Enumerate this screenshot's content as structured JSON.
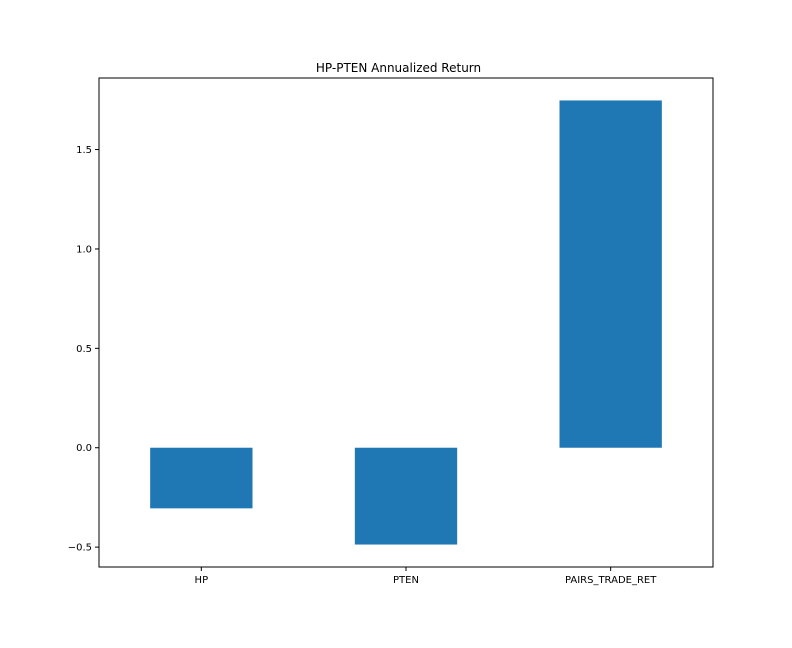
{
  "chart_data": {
    "type": "bar",
    "title": "HP-PTEN Annualized Return",
    "xlabel": "",
    "ylabel": "",
    "categories": [
      "HP",
      "PTEN",
      "PAIRS_TRADE_RET"
    ],
    "values": [
      -0.305,
      -0.487,
      1.747
    ],
    "ylim": [
      -0.6,
      1.86
    ],
    "yticks": [
      -0.5,
      0.0,
      0.5,
      1.0,
      1.5
    ],
    "ytick_labels": [
      "−0.5",
      "0.0",
      "0.5",
      "1.0",
      "1.5"
    ],
    "grid": false,
    "bar_color": "#1f77b4"
  }
}
